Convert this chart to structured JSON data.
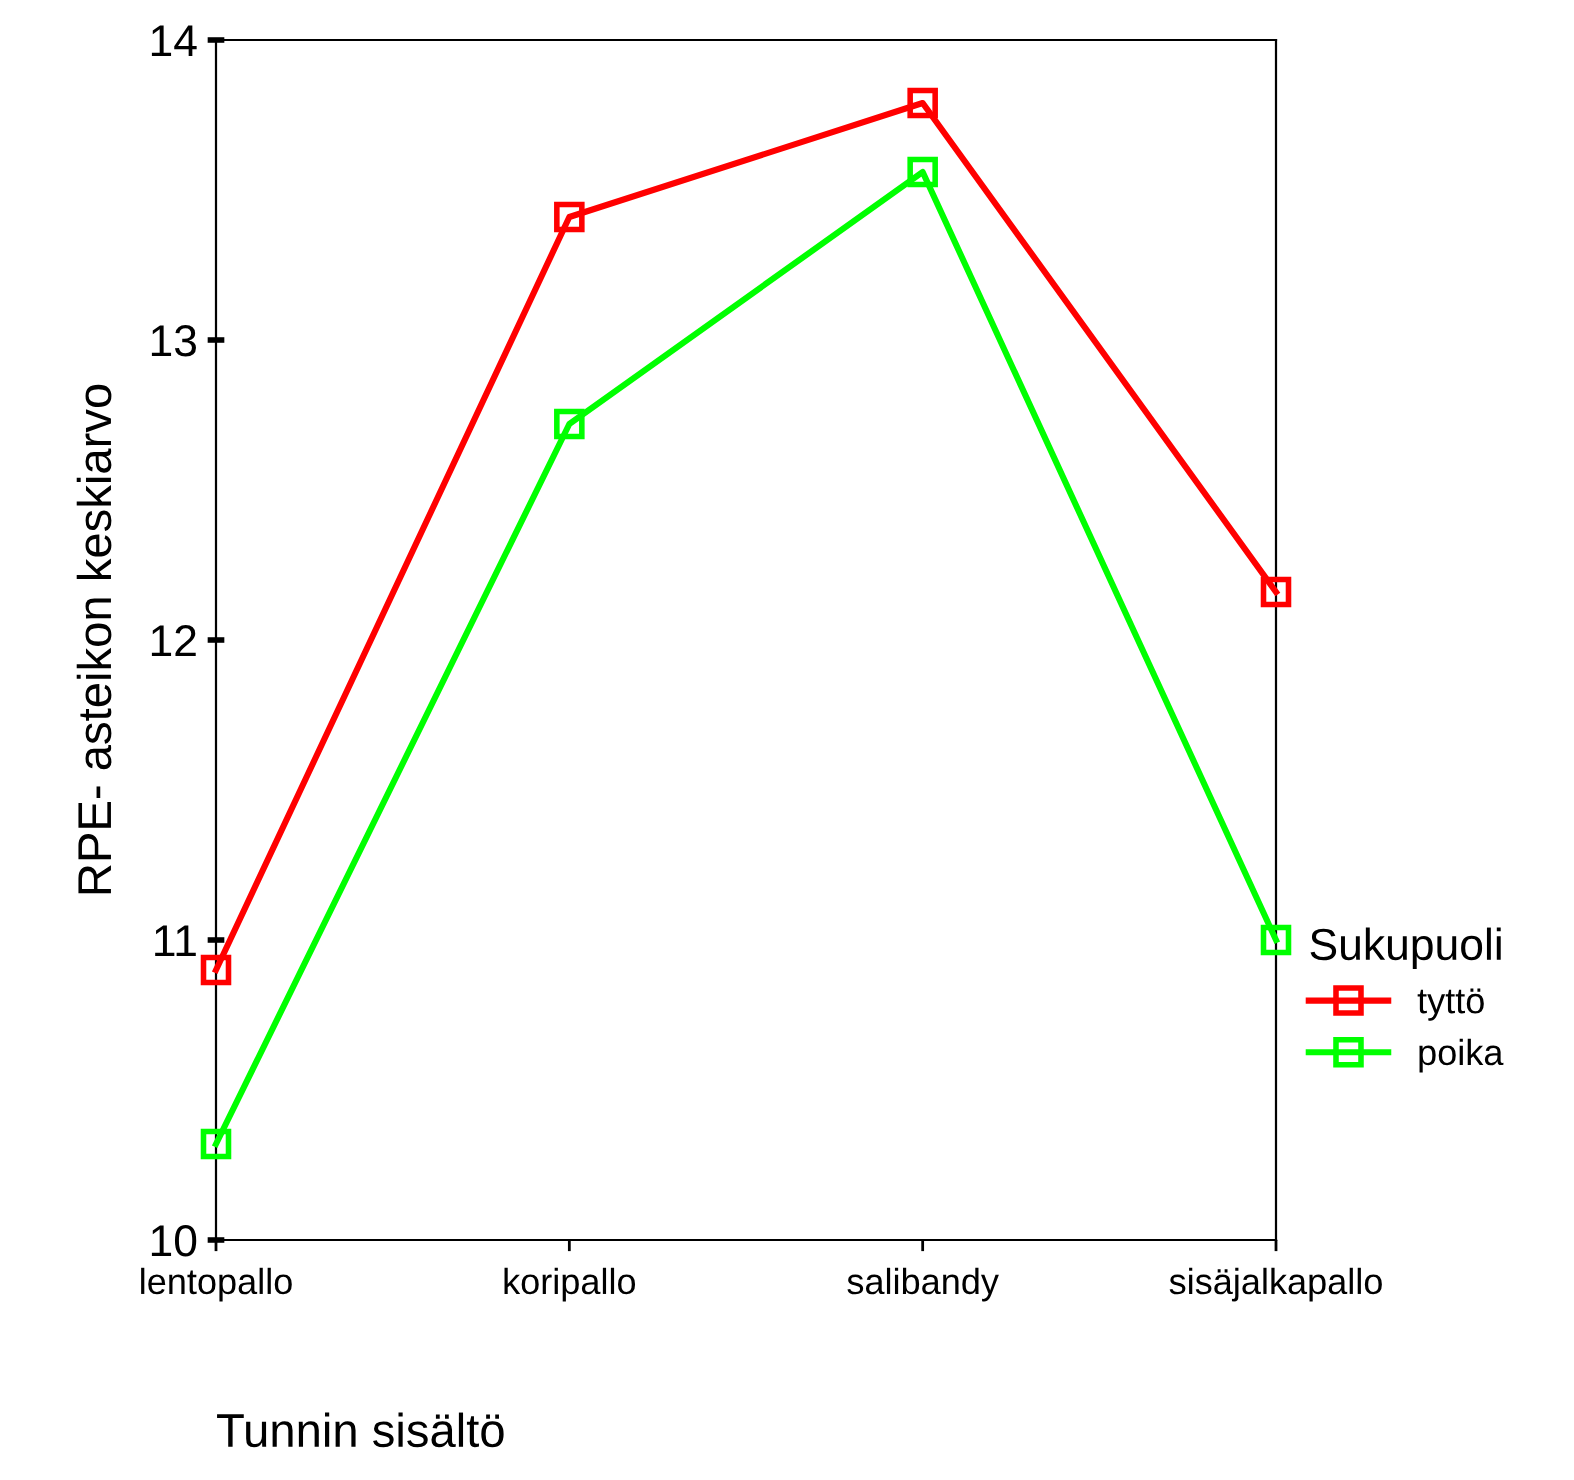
{
  "chart_data": {
    "type": "line",
    "xlabel": "Tunnin sisältö",
    "ylabel": "RPE- asteikon keskiarvo",
    "legend_title": "Sukupuoli",
    "categories": [
      "lentopallo",
      "koripallo",
      "salibandy",
      "sisäjalkapallo"
    ],
    "series": [
      {
        "name": "tyttö",
        "color": "#ff0000",
        "values": [
          10.9,
          13.41,
          13.79,
          12.16
        ]
      },
      {
        "name": "poika",
        "color": "#00ff00",
        "values": [
          10.32,
          12.72,
          13.56,
          11.0
        ]
      }
    ],
    "ylim": [
      10,
      14
    ],
    "yticks": [
      10,
      11,
      12,
      13,
      14
    ],
    "marker": "square",
    "line_style": "solid",
    "legend": "right",
    "grid": false
  }
}
